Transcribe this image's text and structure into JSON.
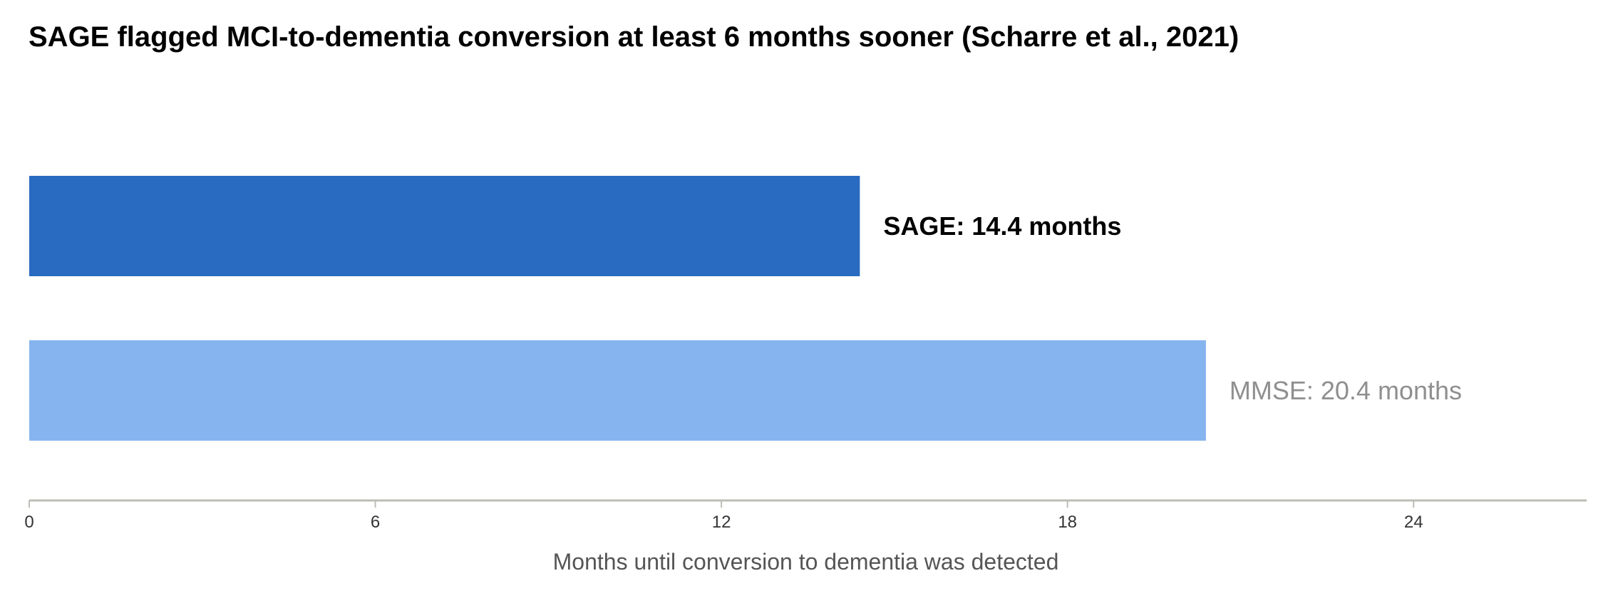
{
  "chart_data": {
    "type": "bar",
    "orientation": "horizontal",
    "title": "SAGE flagged MCI-to-dementia conversion at least 6 months sooner (Scharre et al., 2021)",
    "xlabel": "Months until conversion to dementia was detected",
    "ylabel": "",
    "xlim": [
      0,
      27
    ],
    "xticks": [
      0,
      6,
      12,
      18,
      24
    ],
    "grid": false,
    "categories": [
      "SAGE",
      "MMSE"
    ],
    "values": [
      14.4,
      20.4
    ],
    "data_labels": [
      "SAGE: 14.4 months",
      "MMSE: 20.4 months"
    ],
    "colors": [
      "#286bc0",
      "#86b4ef"
    ],
    "label_colors": [
      "#000000",
      "#8f8f8f"
    ],
    "label_bold": [
      true,
      false
    ],
    "axis_color": "#bdbdb5"
  }
}
